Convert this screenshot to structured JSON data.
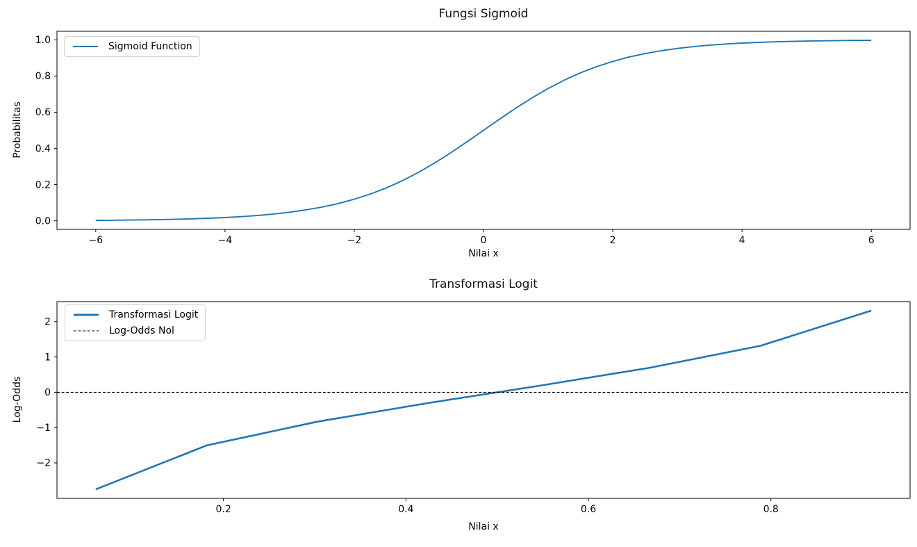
{
  "figure": {
    "background": "#ffffff",
    "accent_blue": "#1f77b4",
    "dashed_black": "#000000",
    "text_color": "#000000"
  },
  "chart_data": [
    {
      "type": "line",
      "title": "Fungsi Sigmoid",
      "xlabel": "Nilai x",
      "ylabel": "Probabilitas",
      "grid": false,
      "legend_position": "upper left",
      "xlim": [
        -6.6,
        6.6
      ],
      "ylim": [
        -0.0473,
        1.0473
      ],
      "xticks": {
        "values": [
          -6,
          -4,
          -2,
          0,
          2,
          4,
          6
        ],
        "labels": [
          "−6",
          "−4",
          "−2",
          "0",
          "2",
          "4",
          "6"
        ]
      },
      "yticks": {
        "values": [
          0.0,
          0.2,
          0.4,
          0.6,
          0.8,
          1.0
        ],
        "labels": [
          "0.0",
          "0.2",
          "0.4",
          "0.6",
          "0.8",
          "1.0"
        ]
      },
      "series": [
        {
          "name": "Sigmoid Function",
          "color": "#1f77b4",
          "line_width": 1.9,
          "dash": null,
          "x": [
            -6,
            -5.75,
            -5.5,
            -5.25,
            -5,
            -4.75,
            -4.5,
            -4.25,
            -4,
            -3.75,
            -3.5,
            -3.25,
            -3,
            -2.75,
            -2.5,
            -2.25,
            -2,
            -1.75,
            -1.5,
            -1.25,
            -1,
            -0.75,
            -0.5,
            -0.25,
            0,
            0.25,
            0.5,
            0.75,
            1,
            1.25,
            1.5,
            1.75,
            2,
            2.25,
            2.5,
            2.75,
            3,
            3.25,
            3.5,
            3.75,
            4,
            4.25,
            4.5,
            4.75,
            5,
            5.25,
            5.5,
            5.75,
            6
          ],
          "y": [
            0.0025,
            0.0032,
            0.0041,
            0.0052,
            0.0067,
            0.0086,
            0.011,
            0.0141,
            0.018,
            0.023,
            0.0293,
            0.0374,
            0.0474,
            0.0601,
            0.0759,
            0.0953,
            0.1192,
            0.148,
            0.1824,
            0.2227,
            0.2689,
            0.3208,
            0.3775,
            0.4378,
            0.5,
            0.5622,
            0.6225,
            0.6792,
            0.7311,
            0.7773,
            0.8176,
            0.852,
            0.8808,
            0.9047,
            0.9241,
            0.9399,
            0.9526,
            0.9626,
            0.9707,
            0.977,
            0.982,
            0.9859,
            0.989,
            0.9914,
            0.9933,
            0.9948,
            0.9959,
            0.9968,
            0.9975
          ]
        }
      ]
    },
    {
      "type": "line",
      "title": "Transformasi Logit",
      "xlabel": "Nilai x",
      "ylabel": "Log-Odds",
      "grid": false,
      "legend_position": "upper left",
      "xlim": [
        0.0175,
        0.9525
      ],
      "ylim": [
        -3.005,
        2.567
      ],
      "xticks": {
        "values": [
          0.2,
          0.4,
          0.6,
          0.8
        ],
        "labels": [
          "0.2",
          "0.4",
          "0.6",
          "0.8"
        ]
      },
      "yticks": {
        "values": [
          -2,
          -1,
          0,
          1,
          2
        ],
        "labels": [
          "−2",
          "−1",
          "0",
          "1",
          "2"
        ]
      },
      "series": [
        {
          "name": "Transformasi Logit",
          "color": "#1f77b4",
          "line_width": 2.6,
          "dash": null,
          "x": [
            0.06,
            0.1814,
            0.3029,
            0.4243,
            0.5457,
            0.6671,
            0.7886,
            0.91
          ],
          "y": [
            -2.7515,
            -1.5067,
            -0.8338,
            -0.3052,
            0.1834,
            0.6953,
            1.3163,
            2.3136
          ]
        },
        {
          "name": "Log-Odds Nol",
          "color": "#000000",
          "line_width": 1.1,
          "dash": "4,2.6",
          "x": [
            0.0175,
            0.9525
          ],
          "y": [
            0,
            0
          ]
        }
      ]
    }
  ]
}
